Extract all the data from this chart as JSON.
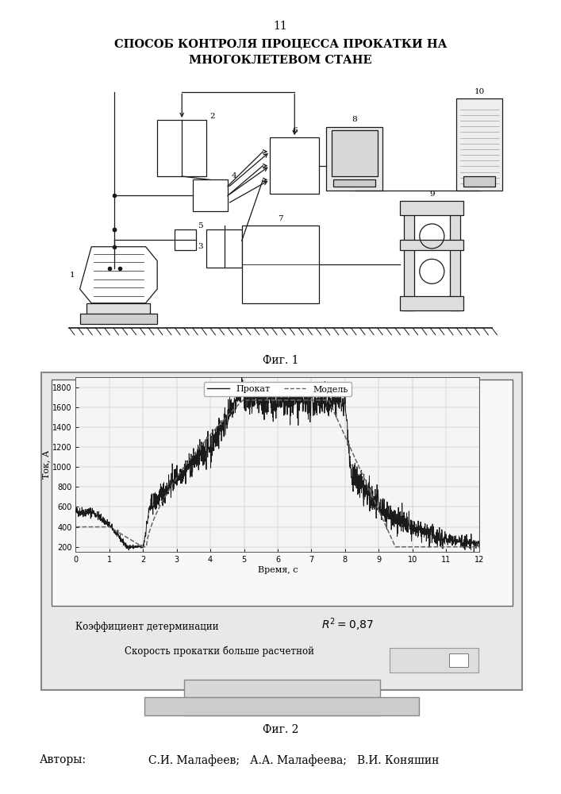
{
  "page_number": "11",
  "title_line1": "СПОСОБ КОНТРОЛЯ ПРОЦЕССА ПРОКАТКИ НА",
  "title_line2": "МНОГОКЛЕТЕВОМ СТАНЕ",
  "fig1_label": "Фиг. 1",
  "fig2_label": "Фиг. 2",
  "authors_label": "Авторы:",
  "authors": "С.И. Малафеев;   А.А. Малафеева;   В.И. Коняшин",
  "legend_prokat": "Прокат",
  "legend_model": "Модель",
  "ylabel": "Ток, А",
  "xlabel": "Время, с",
  "yticks": [
    200,
    400,
    600,
    800,
    1000,
    1200,
    1400,
    1600,
    1800
  ],
  "xticks": [
    0,
    1,
    2,
    3,
    4,
    5,
    6,
    7,
    8,
    9,
    10,
    11,
    12
  ],
  "annotation1": "Коэффициент детерминации",
  "annotation3": "Скорость прокатки больше расчетной"
}
